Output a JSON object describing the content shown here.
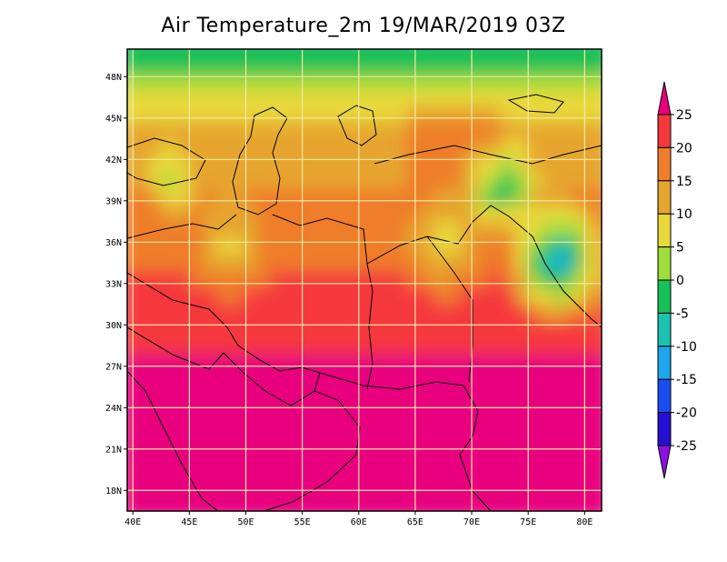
{
  "title": "Air Temperature_2m 19/MAR/2019 03Z",
  "map": {
    "lon_range": [
      39.5,
      81.5
    ],
    "lat_range": [
      16.5,
      50.0
    ],
    "lon_ticks": [
      {
        "value": 40,
        "label": "40E"
      },
      {
        "value": 45,
        "label": "45E"
      },
      {
        "value": 50,
        "label": "50E"
      },
      {
        "value": 55,
        "label": "55E"
      },
      {
        "value": 60,
        "label": "60E"
      },
      {
        "value": 65,
        "label": "65E"
      },
      {
        "value": 70,
        "label": "70E"
      },
      {
        "value": 75,
        "label": "75E"
      },
      {
        "value": 80,
        "label": "80E"
      }
    ],
    "lat_ticks": [
      {
        "value": 18,
        "label": "18N"
      },
      {
        "value": 21,
        "label": "21N"
      },
      {
        "value": 24,
        "label": "24N"
      },
      {
        "value": 27,
        "label": "27N"
      },
      {
        "value": 30,
        "label": "30N"
      },
      {
        "value": 33,
        "label": "33N"
      },
      {
        "value": 36,
        "label": "36N"
      },
      {
        "value": 39,
        "label": "39N"
      },
      {
        "value": 42,
        "label": "42N"
      },
      {
        "value": 45,
        "label": "45N"
      },
      {
        "value": 48,
        "label": "48N"
      }
    ]
  },
  "colorbar": {
    "levels": [
      "25",
      "20",
      "15",
      "10",
      "5",
      "0",
      "-5",
      "-10",
      "-15",
      "-20",
      "-25"
    ],
    "colors": [
      "#e8007e",
      "#f5383c",
      "#ef7d2c",
      "#e6a52e",
      "#e8d83a",
      "#9fdc3c",
      "#18c058",
      "#1cc2b0",
      "#1ea6ee",
      "#1a4cf0",
      "#2410d0",
      "#8c10e0"
    ]
  }
}
